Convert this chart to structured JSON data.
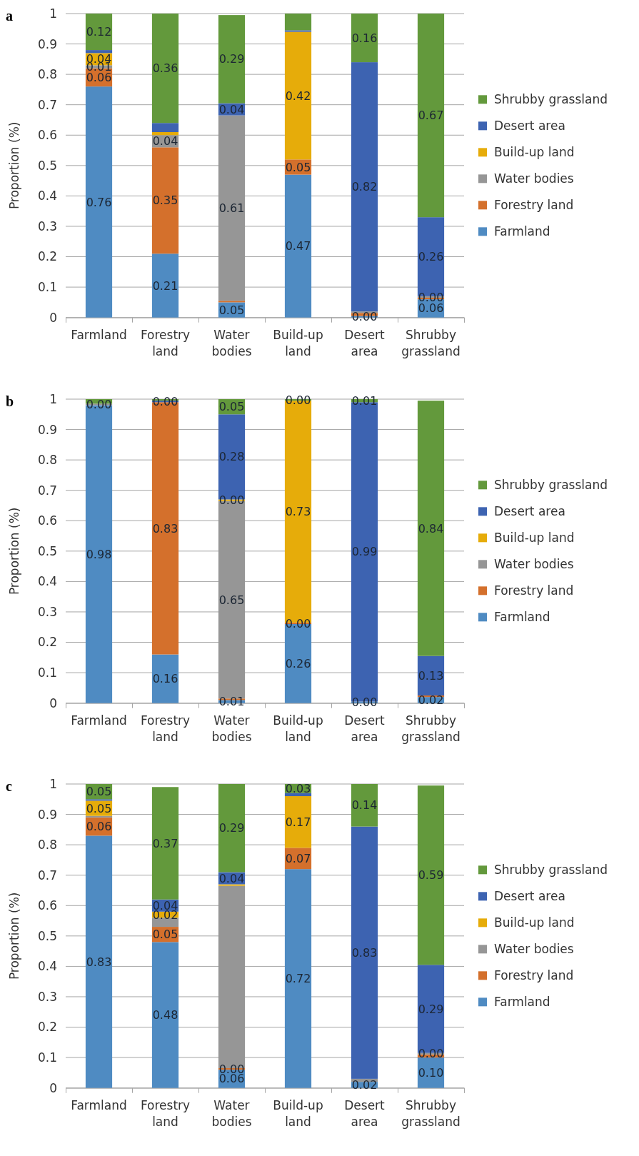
{
  "chart_data": [
    {
      "type": "bar",
      "title": "a",
      "stacked": true,
      "ylabel": "Proportion (%)",
      "ylim": [
        0,
        1
      ],
      "yticks": [
        0,
        0.1,
        0.2,
        0.3,
        0.4,
        0.5,
        0.6,
        0.7,
        0.8,
        0.9,
        1
      ],
      "grid": "y",
      "legend": "right",
      "categories": [
        "Farmland",
        "Forestry land",
        "Water bodies",
        "Build-up land",
        "Desert area",
        "Shrubby grassland"
      ],
      "series": [
        {
          "name": "Farmland",
          "color": "#4f8bc2",
          "values": [
            0.76,
            0.21,
            0.05,
            0.47,
            0.005,
            0.06
          ],
          "value_labels": [
            "0.76",
            "0.21",
            "0.05",
            "0.47",
            "0.00",
            "0.06"
          ]
        },
        {
          "name": "Forestry land",
          "color": "#d4702c",
          "values": [
            0.06,
            0.35,
            0.005,
            0.05,
            0.01,
            0.005
          ],
          "value_labels": [
            "0.06",
            "0.35",
            null,
            "0.05",
            null,
            null
          ]
        },
        {
          "name": "Water bodies",
          "color": "#969696",
          "values": [
            0.01,
            0.04,
            0.61,
            0,
            0.005,
            0.005
          ],
          "value_labels": [
            "0.01",
            "0.04",
            "0.61",
            null,
            null,
            "0.00"
          ]
        },
        {
          "name": "Build-up land",
          "color": "#e6ac0a",
          "values": [
            0.04,
            0.01,
            0,
            0.42,
            0,
            0
          ],
          "value_labels": [
            "0.04",
            null,
            null,
            "0.42",
            null,
            null
          ]
        },
        {
          "name": "Desert area",
          "color": "#3d63b1",
          "values": [
            0.01,
            0.03,
            0.04,
            0.005,
            0.82,
            0.26
          ],
          "value_labels": [
            null,
            null,
            "0.04",
            null,
            "0.82",
            "0.26"
          ]
        },
        {
          "name": "Shrubby grassland",
          "color": "#63993c",
          "values": [
            0.12,
            0.36,
            0.29,
            0.055,
            0.16,
            0.67
          ],
          "value_labels": [
            "0.12",
            "0.36",
            "0.29",
            null,
            "0.16",
            "0.67"
          ]
        }
      ]
    },
    {
      "type": "bar",
      "title": "b",
      "stacked": true,
      "ylabel": "Proportion (%)",
      "ylim": [
        0,
        1
      ],
      "yticks": [
        0,
        0.1,
        0.2,
        0.3,
        0.4,
        0.5,
        0.6,
        0.7,
        0.8,
        0.9,
        1
      ],
      "grid": "y",
      "legend": "right",
      "categories": [
        "Farmland",
        "Forestry land",
        "Water bodies",
        "Build-up land",
        "Desert area",
        "Shrubby grassland"
      ],
      "series": [
        {
          "name": "Farmland",
          "color": "#4f8bc2",
          "values": [
            0.98,
            0.16,
            0.01,
            0.26,
            0.005,
            0.02
          ],
          "value_labels": [
            "0.98",
            "0.16",
            "0.01",
            "0.26",
            "0.00",
            "0.02"
          ]
        },
        {
          "name": "Forestry land",
          "color": "#d4702c",
          "values": [
            0,
            0.83,
            0.005,
            0.005,
            0,
            0.005
          ],
          "value_labels": [
            null,
            "0.83",
            null,
            "0.00",
            null,
            null
          ]
        },
        {
          "name": "Water bodies",
          "color": "#969696",
          "values": [
            0.005,
            0,
            0.65,
            0,
            0,
            0
          ],
          "value_labels": [
            "0.00",
            null,
            "0.65",
            null,
            null,
            null
          ]
        },
        {
          "name": "Build-up land",
          "color": "#e6ac0a",
          "values": [
            0,
            0,
            0.005,
            0.73,
            0,
            0
          ],
          "value_labels": [
            null,
            null,
            "0.00",
            "0.73",
            null,
            null
          ]
        },
        {
          "name": "Desert area",
          "color": "#3d63b1",
          "values": [
            0,
            0.005,
            0.28,
            0,
            0.985,
            0.13
          ],
          "value_labels": [
            null,
            "0.00",
            "0.28",
            null,
            "0.99",
            "0.13"
          ]
        },
        {
          "name": "Shrubby grassland",
          "color": "#63993c",
          "values": [
            0.015,
            0.005,
            0.05,
            0.005,
            0.01,
            0.84
          ],
          "value_labels": [
            null,
            null,
            "0.05",
            "0.00",
            "0.01",
            "0.84"
          ]
        }
      ]
    },
    {
      "type": "bar",
      "title": "c",
      "stacked": true,
      "ylabel": "Proportion (%)",
      "ylim": [
        0,
        1
      ],
      "yticks": [
        0,
        0.1,
        0.2,
        0.3,
        0.4,
        0.5,
        0.6,
        0.7,
        0.8,
        0.9,
        1
      ],
      "grid": "y",
      "legend": "right",
      "categories": [
        "Farmland",
        "Forestry land",
        "Water bodies",
        "Build-up land",
        "Desert area",
        "Shrubby grassland"
      ],
      "series": [
        {
          "name": "Farmland",
          "color": "#4f8bc2",
          "values": [
            0.83,
            0.48,
            0.06,
            0.72,
            0.02,
            0.1
          ],
          "value_labels": [
            "0.83",
            "0.48",
            "0.06",
            "0.72",
            "0.02",
            "0.10"
          ]
        },
        {
          "name": "Forestry land",
          "color": "#d4702c",
          "values": [
            0.06,
            0.05,
            0.005,
            0.07,
            0,
            0.01
          ],
          "value_labels": [
            "0.06",
            "0.05",
            "0.00",
            "0.07",
            null,
            null
          ]
        },
        {
          "name": "Water bodies",
          "color": "#969696",
          "values": [
            0.005,
            0.03,
            0.6,
            0,
            0.01,
            0.005
          ],
          "value_labels": [
            null,
            null,
            null,
            null,
            null,
            "0.00"
          ]
        },
        {
          "name": "Build-up land",
          "color": "#e6ac0a",
          "values": [
            0.05,
            0.02,
            0.005,
            0.17,
            0,
            0
          ],
          "value_labels": [
            "0.05",
            "0.02",
            null,
            "0.17",
            null,
            null
          ]
        },
        {
          "name": "Desert area",
          "color": "#3d63b1",
          "values": [
            0.005,
            0.04,
            0.04,
            0.01,
            0.83,
            0.29
          ],
          "value_labels": [
            null,
            "0.04",
            "0.04",
            null,
            "0.83",
            "0.29"
          ]
        },
        {
          "name": "Shrubby grassland",
          "color": "#63993c",
          "values": [
            0.05,
            0.37,
            0.29,
            0.03,
            0.14,
            0.59
          ],
          "value_labels": [
            "0.05",
            "0.37",
            "0.29",
            "0.03",
            "0.14",
            "0.59"
          ]
        }
      ]
    }
  ]
}
